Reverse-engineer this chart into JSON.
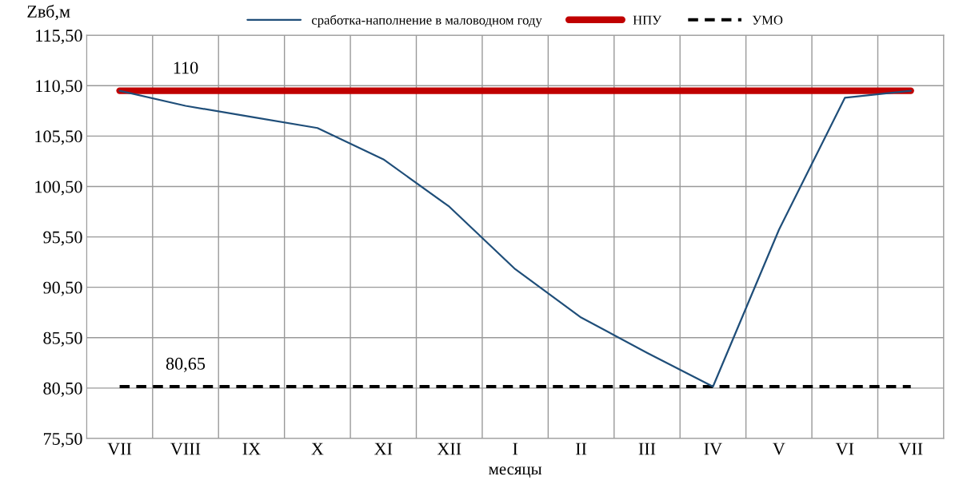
{
  "chart_data": {
    "type": "line",
    "ylabel": "Zвб,м",
    "xlabel": "месяцы",
    "categories": [
      "VII",
      "VIII",
      "IX",
      "X",
      "XI",
      "XII",
      "I",
      "II",
      "III",
      "IV",
      "V",
      "VI",
      "VII"
    ],
    "series": [
      {
        "name": "сработка-наполнение в маловодном году",
        "color": "#1f4e79",
        "values": [
          110,
          108.5,
          107.4,
          106.3,
          103.2,
          98.5,
          92.3,
          87.5,
          84.0,
          80.65,
          96.2,
          109.3,
          110
        ]
      },
      {
        "name": "НПУ",
        "color": "#c00000",
        "values": [
          110,
          110,
          110,
          110,
          110,
          110,
          110,
          110,
          110,
          110,
          110,
          110,
          110
        ]
      },
      {
        "name": "УМО",
        "color": "#000000",
        "line_style": "dashed",
        "values": [
          80.65,
          80.65,
          80.65,
          80.65,
          80.65,
          80.65,
          80.65,
          80.65,
          80.65,
          80.65,
          80.65,
          80.65,
          80.65
        ]
      }
    ],
    "annotations": [
      {
        "text": "110",
        "x": "VIII",
        "y": 110
      },
      {
        "text": "80,65",
        "x": "VIII",
        "y": 80.65
      }
    ],
    "ylim": [
      75.5,
      115.5
    ],
    "yticks": [
      {
        "value": 75.5,
        "label": "75,50"
      },
      {
        "value": 80.5,
        "label": "80,50"
      },
      {
        "value": 85.5,
        "label": "85,50"
      },
      {
        "value": 90.5,
        "label": "90,50"
      },
      {
        "value": 95.5,
        "label": "95,50"
      },
      {
        "value": 100.5,
        "label": "100,50"
      },
      {
        "value": 105.5,
        "label": "105,50"
      },
      {
        "value": 110.5,
        "label": "110,50"
      },
      {
        "value": 115.5,
        "label": "115,50"
      }
    ],
    "grid": true,
    "legend": "top",
    "marker": "none"
  }
}
